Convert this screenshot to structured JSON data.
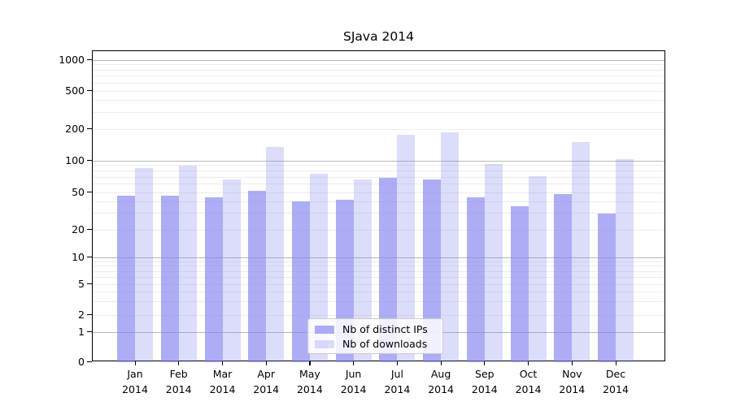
{
  "chart_data": {
    "type": "bar",
    "title": "SJava 2014",
    "yscale": "symlog",
    "grid": true,
    "categories": [
      "Jan",
      "Feb",
      "Mar",
      "Apr",
      "May",
      "Jun",
      "Jul",
      "Aug",
      "Sep",
      "Oct",
      "Nov",
      "Dec"
    ],
    "x_year": "2014",
    "y_ticks": [
      "0",
      "1",
      "2",
      "5",
      "10",
      "20",
      "50",
      "100",
      "200",
      "500",
      "1000"
    ],
    "ylim": [
      0,
      1000
    ],
    "legend_position": "lower center",
    "series": [
      {
        "name": "Nb of distinct IPs",
        "color": "#8282f2",
        "alpha": 0.66,
        "values": [
          46,
          46,
          44,
          52,
          40,
          42,
          69,
          66,
          44,
          36,
          48,
          30
        ]
      },
      {
        "name": "Nb of downloads",
        "color": "#8282f2",
        "alpha": 0.28,
        "values": [
          85,
          90,
          66,
          135,
          75,
          66,
          177,
          188,
          93,
          71,
          150,
          104
        ]
      }
    ]
  },
  "colors": {
    "background": "#ffffff",
    "spine": "#000000",
    "grid_major": "#b7b7b7",
    "grid_minor": "#ececec",
    "text": "#000000",
    "bar_distinct_ips_rendered": "#acacf6",
    "bar_downloads_rendered": "#dcdcfb"
  }
}
